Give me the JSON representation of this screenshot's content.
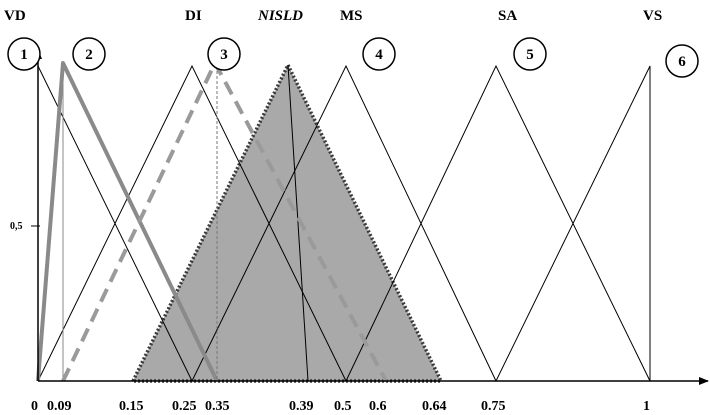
{
  "term_labels": {
    "vd": "VD",
    "di": "DI",
    "nisld": "NISLD",
    "ms": "MS",
    "sa": "SA",
    "vs": "VS"
  },
  "circle_numbers": [
    "1",
    "2",
    "3",
    "4",
    "5",
    "6"
  ],
  "y_tick_label": "0,5",
  "x_tick_labels": [
    "0",
    "0.09",
    "0.15",
    "0.25",
    "0.35",
    "0.39",
    "0.5",
    "0.6",
    "0.64",
    "0.75",
    "1"
  ],
  "membership_functions": [
    {
      "label": "VD",
      "points": [
        0,
        0,
        0.25
      ],
      "style": "thin"
    },
    {
      "label": "DI",
      "points": [
        0,
        0.25,
        0.5
      ],
      "style": "thin"
    },
    {
      "label": "MS",
      "points": [
        0.25,
        0.5,
        0.75
      ],
      "style": "thin"
    },
    {
      "label": "SA",
      "points": [
        0.5,
        0.75,
        1
      ],
      "style": "thin"
    },
    {
      "label": "VS",
      "points": [
        0.75,
        1,
        1
      ],
      "style": "thin"
    },
    {
      "label": "2",
      "points": [
        0,
        0.04,
        0.25
      ],
      "style": "thick-gray"
    },
    {
      "label": "3",
      "points": [
        0.04,
        0.28,
        0.56
      ],
      "style": "dashed-gray"
    },
    {
      "label": "NISLD",
      "points": [
        0.15,
        0.39,
        0.64
      ],
      "style": "filled"
    }
  ],
  "colors": {
    "thin_line": "#000000",
    "thick_gray": "#8a8a8a",
    "dashed_gray": "#9a9a9a",
    "filled": "#a9a9a9"
  }
}
